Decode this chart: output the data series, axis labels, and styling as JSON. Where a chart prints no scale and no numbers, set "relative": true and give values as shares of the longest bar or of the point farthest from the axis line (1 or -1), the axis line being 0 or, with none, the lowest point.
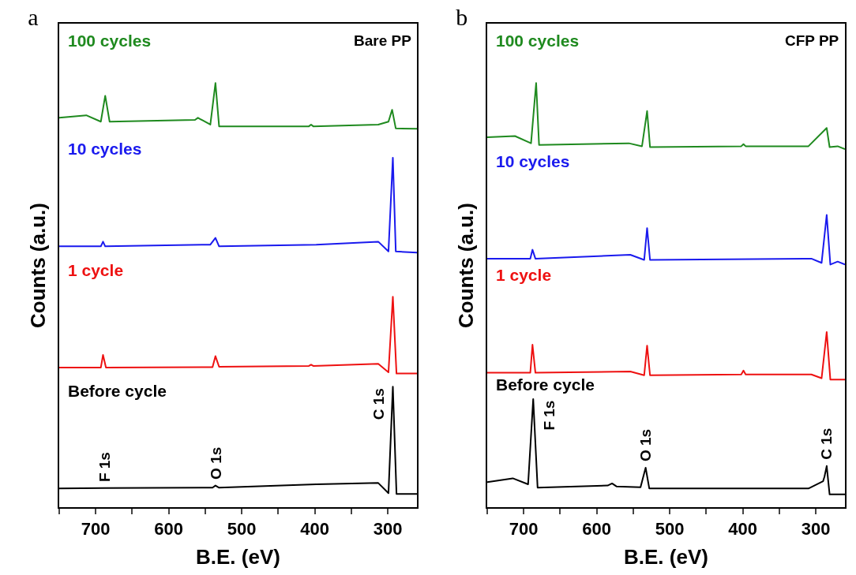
{
  "chart_data": [
    {
      "type": "line",
      "title": "a",
      "xlabel": "B.E. (eV)",
      "ylabel": "Counts (a.u.)",
      "relative": true,
      "legend": false,
      "grid": false,
      "xlim": [
        750,
        260
      ],
      "xticks": [
        {
          "value": 750,
          "label": null
        },
        700,
        {
          "value": 650,
          "label": null
        },
        600,
        {
          "value": 550,
          "label": null
        },
        500,
        {
          "value": 450,
          "label": null
        },
        400,
        {
          "value": 350,
          "label": null
        },
        300
      ],
      "annotations": [
        "Bare PP",
        {
          "text": "F 1s",
          "x": 688,
          "y": 0.045
        },
        {
          "text": "O 1s",
          "x": 536,
          "y": 0.051
        },
        {
          "text": "C 1s",
          "x": 293,
          "y": 0.284
        }
      ],
      "series": [
        {
          "name": "100 cycles",
          "color": "#1f8a1f",
          "x": [
            750,
            713,
            693,
            687,
            681,
            564,
            560,
            543,
            536,
            531,
            408,
            405,
            402,
            313,
            299,
            294,
            289,
            260
          ],
          "values": [
            0.918,
            0.924,
            0.909,
            0.97,
            0.909,
            0.913,
            0.918,
            0.902,
            1.0,
            0.898,
            0.898,
            0.902,
            0.898,
            0.902,
            0.909,
            0.937,
            0.893,
            0.892
          ]
        },
        {
          "name": "10 cycles",
          "color": "#1a1aee",
          "x": [
            750,
            693,
            690,
            687,
            543,
            536,
            531,
            398,
            313,
            299,
            293,
            289,
            260
          ],
          "values": [
            0.615,
            0.615,
            0.626,
            0.615,
            0.619,
            0.635,
            0.615,
            0.619,
            0.626,
            0.603,
            0.824,
            0.603,
            0.6
          ]
        },
        {
          "name": "1 cycle",
          "color": "#ee1111",
          "x": [
            750,
            693,
            690,
            686,
            540,
            536,
            531,
            408,
            405,
            402,
            313,
            299,
            293,
            288,
            260
          ],
          "values": [
            0.329,
            0.329,
            0.359,
            0.329,
            0.33,
            0.356,
            0.331,
            0.333,
            0.336,
            0.333,
            0.338,
            0.318,
            0.496,
            0.315,
            0.315
          ]
        },
        {
          "name": "Before cycle",
          "color": "#000000",
          "x": [
            750,
            688,
            540,
            536,
            531,
            398,
            313,
            299,
            293,
            288,
            260
          ],
          "values": [
            0.044,
            0.045,
            0.046,
            0.051,
            0.046,
            0.054,
            0.057,
            0.033,
            0.284,
            0.031,
            0.031
          ]
        }
      ]
    },
    {
      "type": "line",
      "title": "b",
      "xlabel": "B.E. (eV)",
      "ylabel": "Counts (a.u.)",
      "relative": true,
      "legend": false,
      "grid": false,
      "xlim": [
        750,
        260
      ],
      "xticks": [
        {
          "value": 750,
          "label": null
        },
        700,
        {
          "value": 650,
          "label": null
        },
        600,
        {
          "value": 550,
          "label": null
        },
        500,
        {
          "value": 450,
          "label": null
        },
        400,
        {
          "value": 350,
          "label": null
        },
        300
      ],
      "annotations": [
        "CFP PP",
        {
          "text": "F 1s",
          "x": 687,
          "y": 0.255
        },
        {
          "text": "O 1s",
          "x": 533,
          "y": 0.093
        },
        {
          "text": "C 1s",
          "x": 285,
          "y": 0.097
        }
      ],
      "series": [
        {
          "name": "100 cycles",
          "color": "#1f8a1f",
          "x": [
            750,
            712,
            690,
            683,
            679,
            556,
            538,
            531,
            527,
            402,
            399,
            396,
            310,
            285,
            281,
            270,
            260
          ],
          "values": [
            0.872,
            0.875,
            0.858,
            1.0,
            0.854,
            0.858,
            0.851,
            0.934,
            0.849,
            0.851,
            0.856,
            0.851,
            0.851,
            0.894,
            0.849,
            0.851,
            0.844
          ]
        },
        {
          "name": "10 cycles",
          "color": "#1a1aee",
          "x": [
            750,
            691,
            688,
            684,
            554,
            535,
            531,
            527,
            306,
            292,
            285,
            280,
            270,
            260
          ],
          "values": [
            0.586,
            0.586,
            0.607,
            0.586,
            0.595,
            0.583,
            0.658,
            0.583,
            0.586,
            0.576,
            0.689,
            0.572,
            0.579,
            0.572
          ]
        },
        {
          "name": "1 cycle",
          "color": "#ee1111",
          "x": [
            750,
            691,
            688,
            684,
            554,
            535,
            531,
            527,
            402,
            399,
            396,
            306,
            292,
            285,
            280,
            260
          ],
          "values": [
            0.317,
            0.317,
            0.383,
            0.317,
            0.32,
            0.311,
            0.381,
            0.311,
            0.313,
            0.322,
            0.313,
            0.313,
            0.304,
            0.413,
            0.301,
            0.301
          ]
        },
        {
          "name": "Before cycle",
          "color": "#000000",
          "x": [
            750,
            715,
            694,
            687,
            681,
            585,
            579,
            573,
            540,
            533,
            528,
            310,
            290,
            288,
            285,
            281,
            260
          ],
          "values": [
            0.059,
            0.068,
            0.054,
            0.255,
            0.046,
            0.051,
            0.056,
            0.049,
            0.047,
            0.093,
            0.044,
            0.044,
            0.061,
            0.072,
            0.097,
            0.03,
            0.03
          ]
        }
      ]
    }
  ]
}
